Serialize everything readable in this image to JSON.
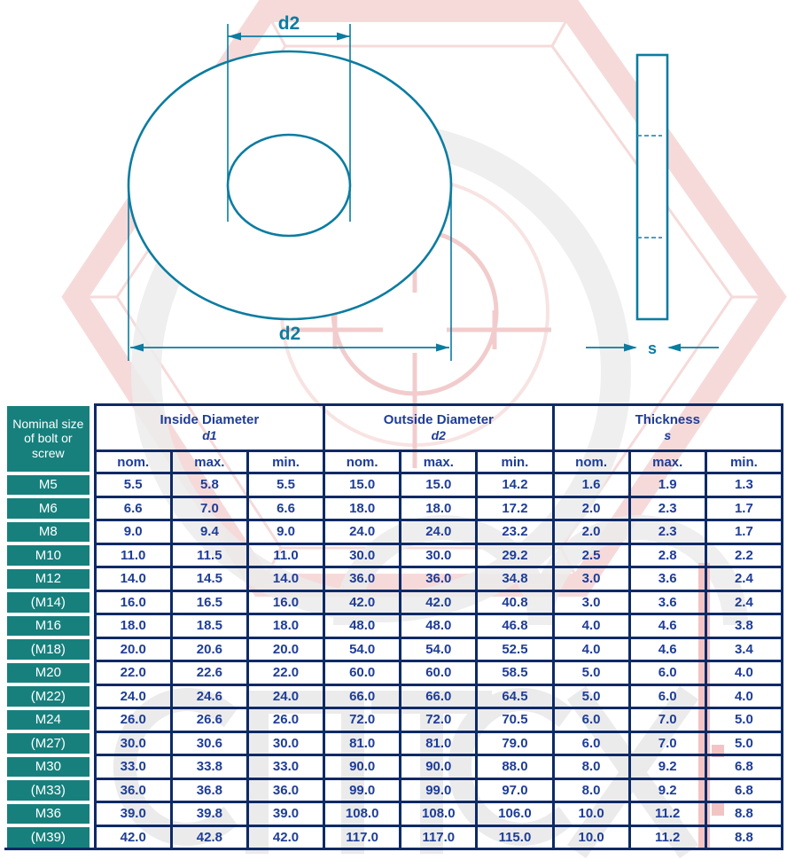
{
  "drawing": {
    "top_dim_label": "d2",
    "bottom_dim_label": "d2",
    "thickness_label": "s",
    "views": [
      "washer-front-view",
      "washer-side-view"
    ]
  },
  "table": {
    "corner_header": "Nominal size of bolt or screw",
    "groups": [
      {
        "title": "Inside Diameter",
        "sub": "d1"
      },
      {
        "title": "Outside Diameter",
        "sub": "d2"
      },
      {
        "title": "Thickness",
        "sub": "s"
      }
    ],
    "subheaders": [
      "nom.",
      "max.",
      "min."
    ],
    "rows": [
      {
        "size": "M5",
        "values": [
          "5.5",
          "5.8",
          "5.5",
          "15.0",
          "15.0",
          "14.2",
          "1.6",
          "1.9",
          "1.3"
        ]
      },
      {
        "size": "M6",
        "values": [
          "6.6",
          "7.0",
          "6.6",
          "18.0",
          "18.0",
          "17.2",
          "2.0",
          "2.3",
          "1.7"
        ]
      },
      {
        "size": "M8",
        "values": [
          "9.0",
          "9.4",
          "9.0",
          "24.0",
          "24.0",
          "23.2",
          "2.0",
          "2.3",
          "1.7"
        ]
      },
      {
        "size": "M10",
        "values": [
          "11.0",
          "11.5",
          "11.0",
          "30.0",
          "30.0",
          "29.2",
          "2.5",
          "2.8",
          "2.2"
        ]
      },
      {
        "size": "M12",
        "values": [
          "14.0",
          "14.5",
          "14.0",
          "36.0",
          "36.0",
          "34.8",
          "3.0",
          "3.6",
          "2.4"
        ]
      },
      {
        "size": "(M14)",
        "values": [
          "16.0",
          "16.5",
          "16.0",
          "42.0",
          "42.0",
          "40.8",
          "3.0",
          "3.6",
          "2.4"
        ]
      },
      {
        "size": "M16",
        "values": [
          "18.0",
          "18.5",
          "18.0",
          "48.0",
          "48.0",
          "46.8",
          "4.0",
          "4.6",
          "3.8"
        ]
      },
      {
        "size": "(M18)",
        "values": [
          "20.0",
          "20.6",
          "20.0",
          "54.0",
          "54.0",
          "52.5",
          "4.0",
          "4.6",
          "3.4"
        ]
      },
      {
        "size": "M20",
        "values": [
          "22.0",
          "22.6",
          "22.0",
          "60.0",
          "60.0",
          "58.5",
          "5.0",
          "6.0",
          "4.0"
        ]
      },
      {
        "size": "(M22)",
        "values": [
          "24.0",
          "24.6",
          "24.0",
          "66.0",
          "66.0",
          "64.5",
          "5.0",
          "6.0",
          "4.0"
        ]
      },
      {
        "size": "M24",
        "values": [
          "26.0",
          "26.6",
          "26.0",
          "72.0",
          "72.0",
          "70.5",
          "6.0",
          "7.0",
          "5.0"
        ]
      },
      {
        "size": "(M27)",
        "values": [
          "30.0",
          "30.6",
          "30.0",
          "81.0",
          "81.0",
          "79.0",
          "6.0",
          "7.0",
          "5.0"
        ]
      },
      {
        "size": "M30",
        "values": [
          "33.0",
          "33.8",
          "33.0",
          "90.0",
          "90.0",
          "88.0",
          "8.0",
          "9.2",
          "6.8"
        ]
      },
      {
        "size": "(M33)",
        "values": [
          "36.0",
          "36.8",
          "36.0",
          "99.0",
          "99.0",
          "97.0",
          "8.0",
          "9.2",
          "6.8"
        ]
      },
      {
        "size": "M36",
        "values": [
          "39.0",
          "39.8",
          "39.0",
          "108.0",
          "108.0",
          "106.0",
          "10.0",
          "11.2",
          "8.8"
        ]
      },
      {
        "size": "(M39)",
        "values": [
          "42.0",
          "42.8",
          "42.0",
          "117.0",
          "117.0",
          "115.0",
          "10.0",
          "11.2",
          "8.8"
        ]
      }
    ]
  },
  "colors": {
    "header_teal": "#17807d",
    "border_navy": "#0e2a66",
    "text_navy": "#1e3d96",
    "drawing_teal": "#0c7ca0",
    "watermark_pink": "#f6dada",
    "watermark_gray": "#ececec",
    "watermark_red": "#f3c4c4"
  }
}
